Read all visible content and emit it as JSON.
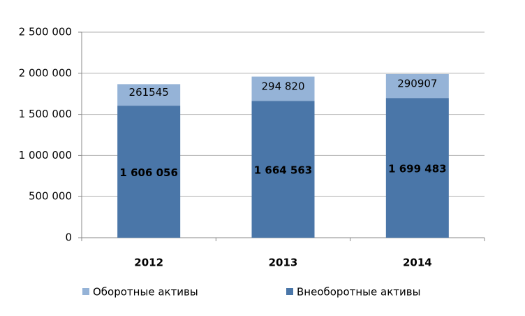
{
  "chart_data": {
    "type": "stacked_bar",
    "categories": [
      "2012",
      "2013",
      "2014"
    ],
    "series": [
      {
        "name": "Оборотные активы",
        "color": "#95b3d7",
        "values": [
          261545,
          294820,
          290907
        ],
        "value_labels": [
          "261545",
          "294 820",
          "290907"
        ]
      },
      {
        "name": "Внеоборотные активы",
        "color": "#4a76a8",
        "values": [
          1606056,
          1664563,
          1699483
        ],
        "value_labels": [
          "1 606 056",
          "1 664 563",
          "1 699 483"
        ]
      }
    ],
    "ylim": [
      0,
      2500000
    ],
    "yticks": [
      {
        "value": 0,
        "label": "0"
      },
      {
        "value": 500000,
        "label": "500 000"
      },
      {
        "value": 1000000,
        "label": "1 000 000"
      },
      {
        "value": 1500000,
        "label": "1 500 000"
      },
      {
        "value": 2000000,
        "label": "2 000 000"
      },
      {
        "value": 2500000,
        "label": "2 500 000"
      }
    ],
    "grid": true,
    "legend": "bottom"
  }
}
